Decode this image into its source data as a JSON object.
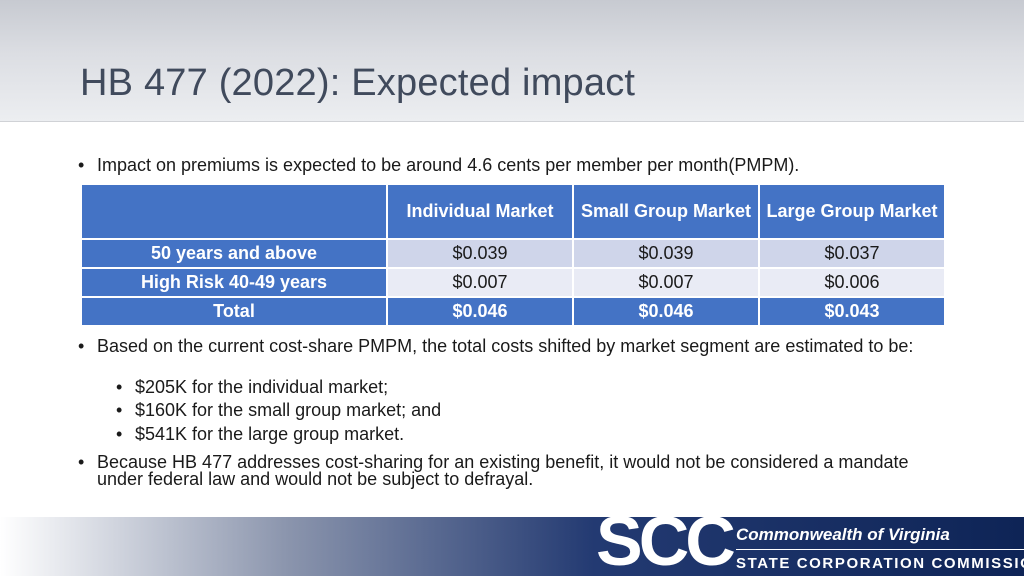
{
  "slide": {
    "title": "HB 477 (2022): Expected impact"
  },
  "bullets": {
    "dot": "•",
    "intro": "Impact on premiums is expected to be around 4.6 cents per member per month(PMPM).",
    "cost_share": "Based on the current cost-share PMPM, the total costs shifted by market segment are estimated to be:",
    "sub_items": [
      "$205K for the individual market;",
      "$160K for the small group market; and",
      "$541K for the large group market."
    ],
    "mandate": "Because HB 477 addresses cost-sharing for an existing benefit, it would not be considered a mandate under federal law and would not be subject to defrayal."
  },
  "table": {
    "headers": [
      "",
      "Individual Market",
      "Small Group Market",
      "Large Group Market"
    ],
    "rows": [
      {
        "label": "50 years and above",
        "values": [
          "$0.039",
          "$0.039",
          "$0.037"
        ]
      },
      {
        "label": "High Risk 40-49 years",
        "values": [
          "$0.007",
          "$0.007",
          "$0.006"
        ]
      },
      {
        "label": "Total",
        "values": [
          "$0.046",
          "$0.046",
          "$0.043"
        ]
      }
    ]
  },
  "footer": {
    "logo_letters": "SCC",
    "org_line1": "Commonwealth of Virginia",
    "org_line2": "STATE CORPORATION COMMISSION"
  },
  "colors": {
    "table_header": "#4473c5",
    "row_light": "#cfd5ea",
    "row_lighter": "#e9ebf5",
    "footer_navy": "#0e2456"
  }
}
